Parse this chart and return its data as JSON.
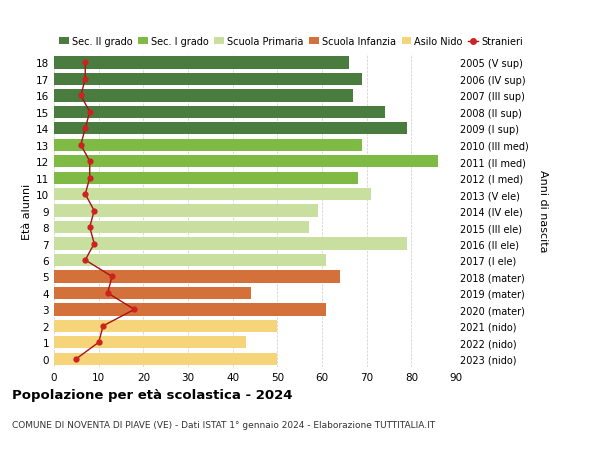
{
  "ages": [
    18,
    17,
    16,
    15,
    14,
    13,
    12,
    11,
    10,
    9,
    8,
    7,
    6,
    5,
    4,
    3,
    2,
    1,
    0
  ],
  "years": [
    "2005 (V sup)",
    "2006 (IV sup)",
    "2007 (III sup)",
    "2008 (II sup)",
    "2009 (I sup)",
    "2010 (III med)",
    "2011 (II med)",
    "2012 (I med)",
    "2013 (V ele)",
    "2014 (IV ele)",
    "2015 (III ele)",
    "2016 (II ele)",
    "2017 (I ele)",
    "2018 (mater)",
    "2019 (mater)",
    "2020 (mater)",
    "2021 (nido)",
    "2022 (nido)",
    "2023 (nido)"
  ],
  "bar_values": [
    66,
    69,
    67,
    74,
    79,
    69,
    86,
    68,
    71,
    59,
    57,
    79,
    61,
    64,
    44,
    61,
    50,
    43,
    50
  ],
  "bar_colors": [
    "#4a7c3f",
    "#4a7c3f",
    "#4a7c3f",
    "#4a7c3f",
    "#4a7c3f",
    "#7fba45",
    "#7fba45",
    "#7fba45",
    "#c8dfa0",
    "#c8dfa0",
    "#c8dfa0",
    "#c8dfa0",
    "#c8dfa0",
    "#d4703a",
    "#d4703a",
    "#d4703a",
    "#f5d47a",
    "#f5d47a",
    "#f5d47a"
  ],
  "stranieri_values": [
    7,
    7,
    6,
    8,
    7,
    6,
    8,
    8,
    7,
    9,
    8,
    9,
    7,
    13,
    12,
    18,
    11,
    10,
    5
  ],
  "legend_labels": [
    "Sec. II grado",
    "Sec. I grado",
    "Scuola Primaria",
    "Scuola Infanzia",
    "Asilo Nido",
    "Stranieri"
  ],
  "legend_colors": [
    "#4a7c3f",
    "#7fba45",
    "#c8dfa0",
    "#d4703a",
    "#f5d47a",
    "#cc2222"
  ],
  "title": "Popolazione per età scolastica - 2024",
  "subtitle": "COMUNE DI NOVENTA DI PIAVE (VE) - Dati ISTAT 1° gennaio 2024 - Elaborazione TUTTITALIA.IT",
  "ylabel_left": "Età alunni",
  "ylabel_right": "Anni di nascita",
  "xlim": [
    0,
    90
  ],
  "xticks": [
    0,
    10,
    20,
    30,
    40,
    50,
    60,
    70,
    80,
    90
  ],
  "bar_height": 0.75,
  "background_color": "#ffffff",
  "grid_color": "#cccccc",
  "stranieri_line_color": "#aa1111",
  "stranieri_marker_color": "#cc2222"
}
